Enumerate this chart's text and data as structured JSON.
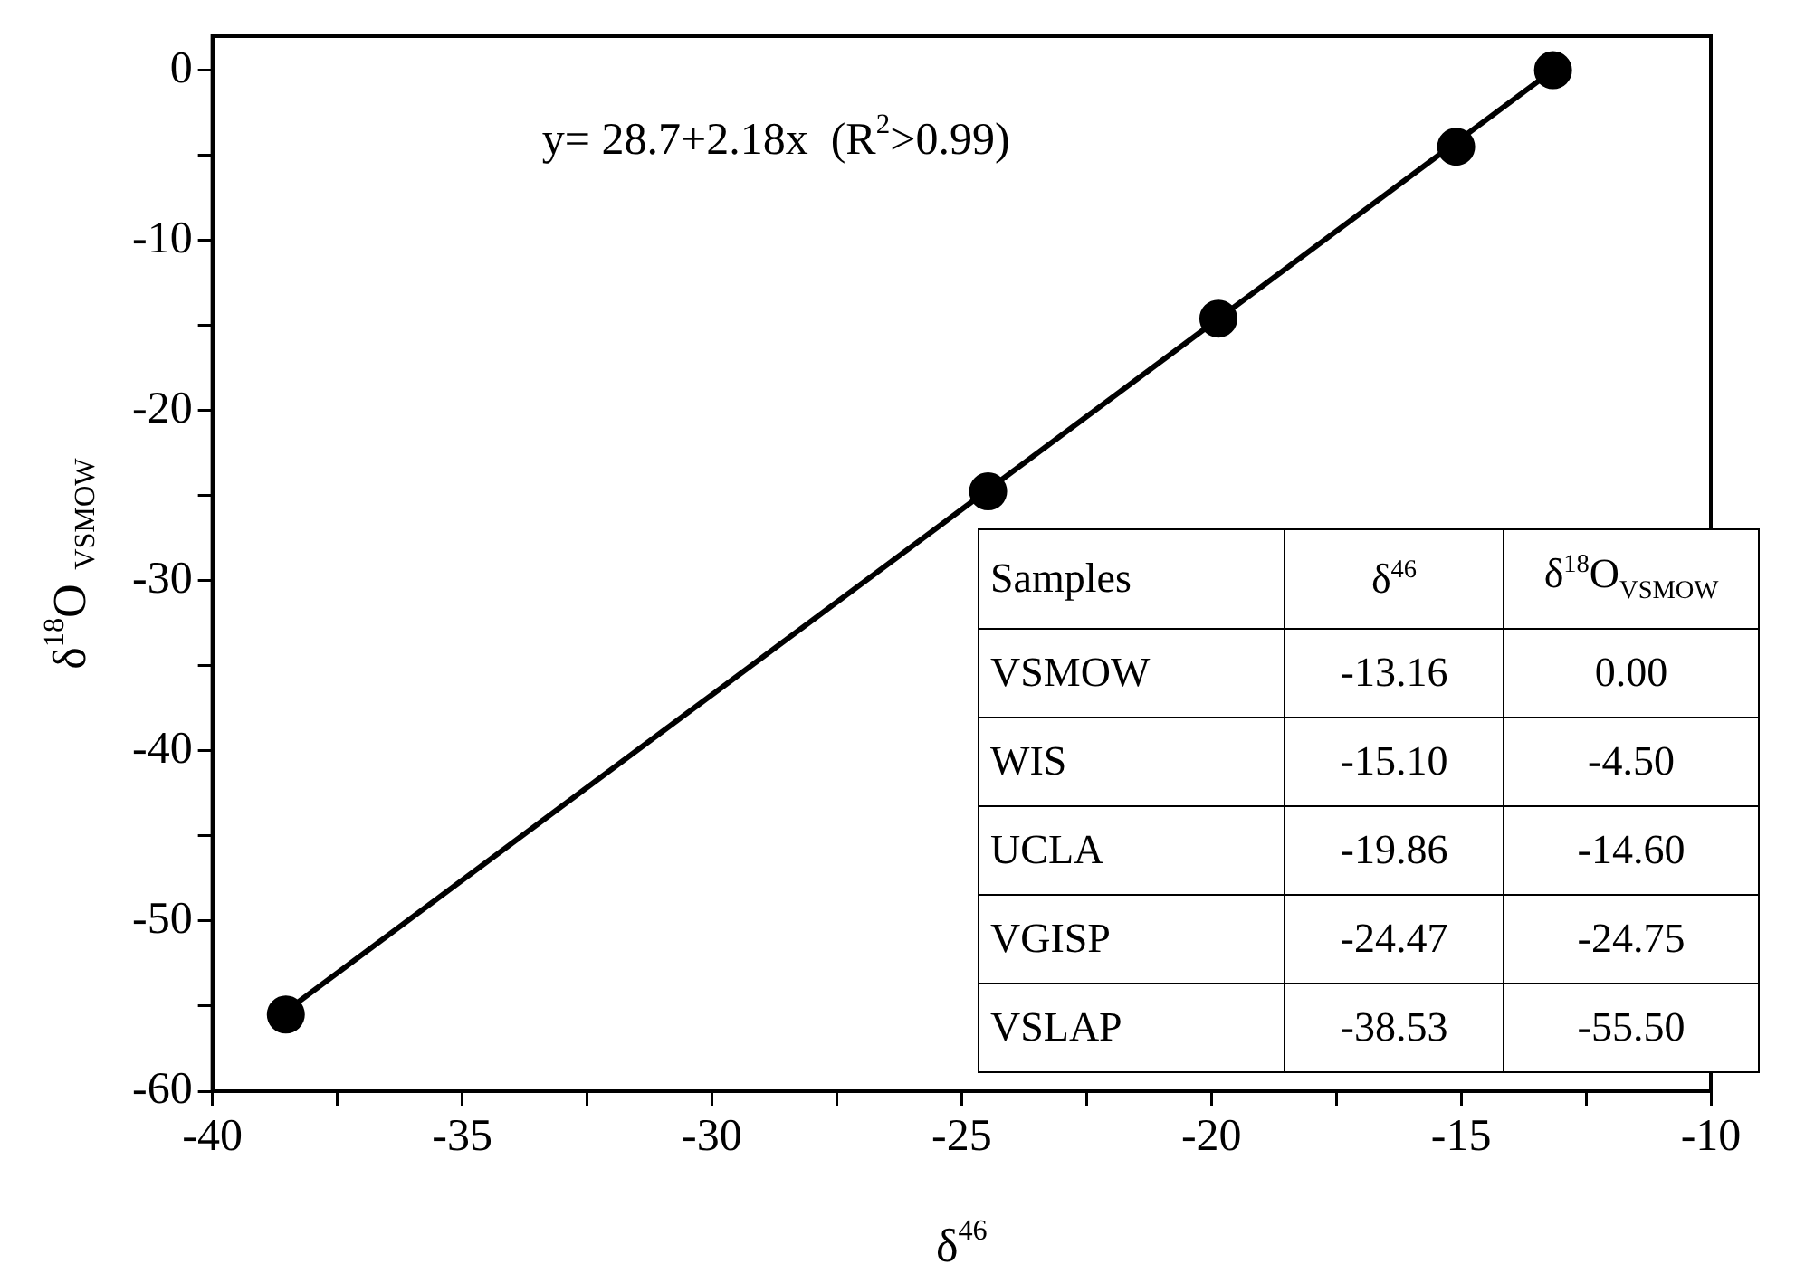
{
  "chart_data": {
    "type": "scatter",
    "xlabel": "δ$^{46}$",
    "ylabel": "δ$^{18}$O$_{VSMOW}$",
    "xlim": [
      -40,
      -10
    ],
    "xticks": [
      -40,
      {
        "value": -37.5,
        "label": null
      },
      -35,
      {
        "value": -32.5,
        "label": null
      },
      -30,
      {
        "value": -27.5,
        "label": null
      },
      -25,
      {
        "value": -22.5,
        "label": null
      },
      -20,
      {
        "value": -17.5,
        "label": null
      },
      -15,
      {
        "value": -12.5,
        "label": null
      },
      -10
    ],
    "ylim": [
      -60,
      2
    ],
    "yticks": [
      -60,
      {
        "value": -55,
        "label": null
      },
      -50,
      {
        "value": -45,
        "label": null
      },
      -40,
      {
        "value": -35,
        "label": null
      },
      -30,
      {
        "value": -25,
        "label": null
      },
      -20,
      {
        "value": -15,
        "label": null
      },
      -10,
      {
        "value": -5,
        "label": null
      },
      0
    ],
    "series": [
      {
        "color": "#000000",
        "marker": "circle",
        "x": [
          -13.16,
          -15.1,
          -19.86,
          -24.47,
          -38.53
        ],
        "values": [
          0.0,
          -4.5,
          -14.6,
          -24.75,
          -55.5
        ]
      },
      {
        "type": "line",
        "color": "#000000",
        "marker": "none",
        "line_style": "solid",
        "x": [
          -38.53,
          -13.16
        ],
        "values": [
          -55.3,
          0.0
        ]
      }
    ],
    "grid": false,
    "legend": false,
    "annotations": [
      "y= 28.7+2.18x  (R$^{2}$>0.99)",
      "Samples",
      "δ$^{46}$",
      "δ$^{18}$O$_{VSMOW}$",
      "VSMOW",
      "-13.16",
      "0.00",
      "WIS",
      "-15.10",
      "-4.50",
      "UCLA",
      "-19.86",
      "-14.60",
      "VGISP",
      "-24.47",
      "-24.75",
      "VSLAP",
      "-38.53",
      "-55.50"
    ]
  }
}
